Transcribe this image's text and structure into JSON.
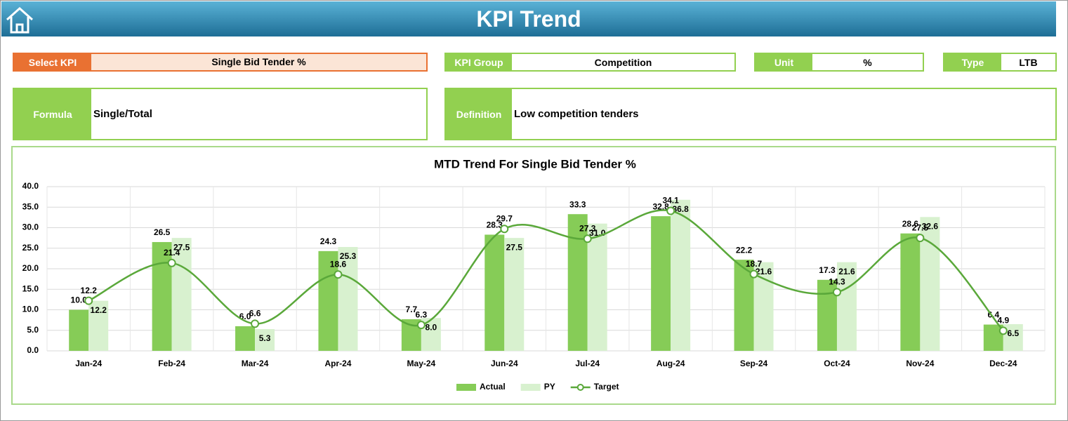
{
  "header": {
    "title": "KPI Trend"
  },
  "fields": [
    {
      "label": "Select KPI",
      "value": "Single Bid Tender %"
    },
    {
      "label": "KPI Group",
      "value": "Competition"
    },
    {
      "label": "Unit",
      "value": "%"
    },
    {
      "label": "Type",
      "value": "LTB"
    }
  ],
  "details": [
    {
      "label": "Formula",
      "value": "Single/Total"
    },
    {
      "label": "Definition",
      "value": "Low competition tenders"
    }
  ],
  "chart_data": {
    "type": "bar",
    "title": "MTD Trend For Single Bid Tender %",
    "categories": [
      "Jan-24",
      "Feb-24",
      "Mar-24",
      "Apr-24",
      "May-24",
      "Jun-24",
      "Jul-24",
      "Aug-24",
      "Sep-24",
      "Oct-24",
      "Nov-24",
      "Dec-24"
    ],
    "series": [
      {
        "name": "Actual",
        "type": "bar",
        "color": "#86cc57",
        "values": [
          10.0,
          26.5,
          6.0,
          24.3,
          7.7,
          28.3,
          33.3,
          32.8,
          22.2,
          17.3,
          28.6,
          6.4
        ],
        "value_labels": [
          "10.0",
          "26.5",
          "6.0",
          "24.3",
          "7.7",
          "28.3",
          "33.3",
          "32.8",
          "22.2",
          "17.3",
          "28.6",
          "6.4"
        ]
      },
      {
        "name": "PY",
        "type": "bar",
        "color": "#d8f1cf",
        "values": [
          12.2,
          27.5,
          5.3,
          25.3,
          8.0,
          27.5,
          31.0,
          36.8,
          21.6,
          21.6,
          32.6,
          6.5
        ],
        "value_labels": [
          "12.2",
          "27.5",
          "5.3",
          "25.3",
          "8.0",
          "27.5",
          "31.0",
          "36.8",
          "21.6",
          "21.6",
          "32.6",
          "6.5"
        ]
      },
      {
        "name": "Target",
        "type": "line",
        "color": "#5aa83a",
        "values": [
          12.2,
          21.4,
          6.6,
          18.6,
          6.3,
          29.7,
          27.3,
          34.1,
          18.7,
          14.3,
          27.5,
          4.9
        ],
        "value_labels": [
          "12.2",
          "21.4",
          "6.6",
          "18.6",
          "6.3",
          "29.7",
          "27.3",
          "34.1",
          "18.7",
          "14.3",
          "27.5",
          "4.9"
        ]
      }
    ],
    "ylim": [
      0,
      40
    ],
    "yticks": [
      {
        "value": 0,
        "label": "0.0"
      },
      {
        "value": 5,
        "label": "5.0"
      },
      {
        "value": 10,
        "label": "10.0"
      },
      {
        "value": 15,
        "label": "15.0"
      },
      {
        "value": 20,
        "label": "20.0"
      },
      {
        "value": 25,
        "label": "25.0"
      },
      {
        "value": 30,
        "label": "30.0"
      },
      {
        "value": 35,
        "label": "35.0"
      },
      {
        "value": 40,
        "label": "40.0"
      }
    ],
    "grid": true,
    "legend": "bottom"
  }
}
